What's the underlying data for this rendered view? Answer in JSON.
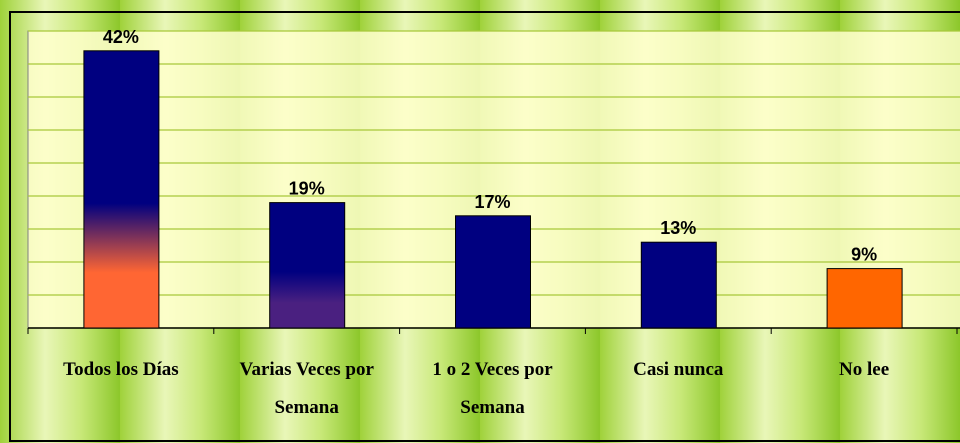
{
  "chart_data": {
    "type": "bar",
    "categories": [
      "Todos los Días",
      "Varias Veces por Semana",
      "1 o 2 Veces por Semana",
      "Casi nunca",
      "No lee"
    ],
    "values": [
      42,
      19,
      17,
      13,
      9
    ],
    "value_labels": [
      "42%",
      "19%",
      "17%",
      "13%",
      "9%"
    ],
    "colors": [
      "#000080",
      "#000080",
      "#000080",
      "#000080",
      "#ff6600"
    ],
    "bottom_colors": [
      "#ff6633",
      "#4a2080",
      "#000080",
      "#000080",
      "#ff6600"
    ],
    "ylim": [
      0,
      45
    ],
    "yticks": [
      0,
      5,
      10,
      15,
      20,
      25,
      30,
      35,
      40,
      45
    ],
    "show_ytick_labels": false,
    "grid": true
  }
}
